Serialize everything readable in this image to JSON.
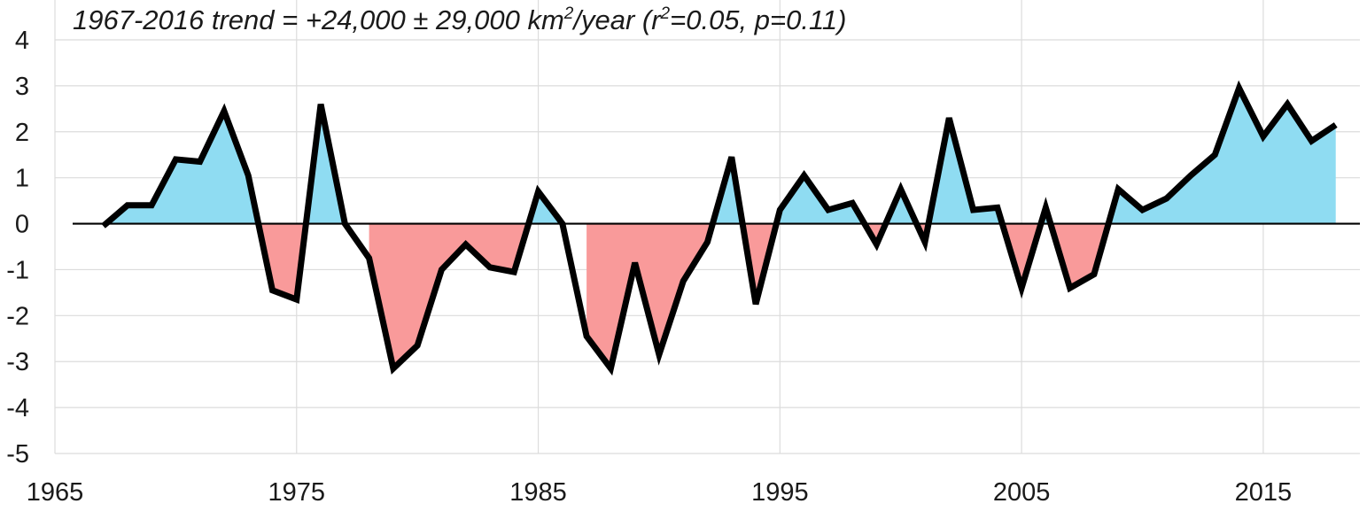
{
  "annotation": {
    "prefix": "1967-2016 trend = +24,000 ± 29,000 km",
    "sup1": "2",
    "mid": "/year (r",
    "sup2": "2",
    "suffix": "=0.05, p=0.11)"
  },
  "chart_data": {
    "type": "area",
    "title": "",
    "xlabel": "",
    "ylabel": "",
    "xlim": [
      1965,
      2019
    ],
    "ylim": [
      -5,
      4
    ],
    "grid": true,
    "x_ticks": [
      1965,
      1975,
      1985,
      1995,
      2005,
      2015
    ],
    "y_ticks": [
      4,
      3,
      2,
      1,
      0,
      -1,
      -2,
      -3,
      -4,
      -5
    ],
    "colors": {
      "positive": "#8fdcf2",
      "negative": "#f99a9a",
      "line": "#000000",
      "zero_line": "#000000"
    },
    "series": [
      {
        "x": [
          1967,
          1968,
          1969,
          1970,
          1971,
          1972,
          1973,
          1974,
          1975,
          1976,
          1977,
          1978,
          1979,
          1980,
          1981,
          1982,
          1983,
          1984,
          1985,
          1986,
          1987,
          1988,
          1989,
          1990,
          1991,
          1992,
          1993,
          1994,
          1995,
          1996,
          1997,
          1998,
          1999,
          2000,
          2001,
          2002,
          2003,
          2004,
          2005,
          2006,
          2007,
          2008,
          2009,
          2010,
          2011,
          2012,
          2013,
          2014,
          2015,
          2016,
          2017,
          2018
        ],
        "values": [
          -0.05,
          0.4,
          0.4,
          1.4,
          1.35,
          2.45,
          1.05,
          -1.45,
          -1.65,
          2.6,
          0.0,
          -0.75,
          -3.15,
          -2.65,
          -1.0,
          -0.45,
          -0.95,
          -1.05,
          0.7,
          0.0,
          -2.45,
          -3.15,
          -0.85,
          -2.85,
          -1.25,
          -0.4,
          1.45,
          -1.75,
          0.3,
          1.05,
          0.3,
          0.45,
          -0.45,
          0.75,
          -0.4,
          2.3,
          0.3,
          0.35,
          -1.4,
          0.35,
          -1.4,
          -1.1,
          0.75,
          0.3,
          0.55,
          1.05,
          1.5,
          2.95,
          1.9,
          2.6,
          1.8,
          2.15
        ]
      }
    ]
  }
}
